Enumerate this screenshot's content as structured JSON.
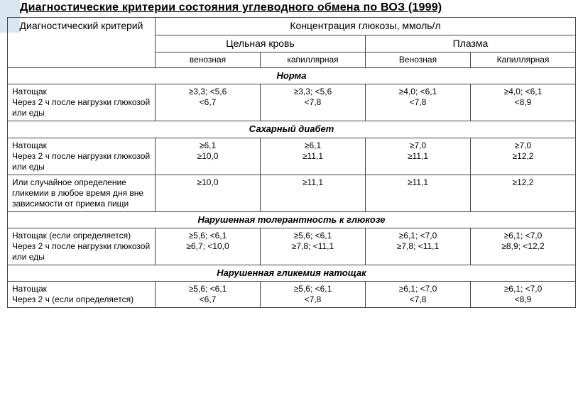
{
  "title": "Диагностические критерии состояния углеводного обмена по ВОЗ (1999)",
  "table": {
    "colgroup": [
      "crit-col",
      "val-col",
      "val-col",
      "val-col",
      "val-col"
    ],
    "header": {
      "criterion": "Диагностический критерий",
      "concentration": "Концентрация глюкозы, ммоль/л",
      "whole_blood": "Цельная кровь",
      "plasma": "Плазма",
      "venous1": "венозная",
      "capillary1": "капиллярная",
      "venous2": "Венозная",
      "capillary2": "Капиллярная"
    },
    "sections": [
      {
        "name": "Норма",
        "rows": [
          {
            "crit": "Натощак\nЧерез 2 ч после нагрузки глюкозой или еды",
            "v": [
              "≥3,3; <5,6\n<6,7",
              "≥3,3; <5,6\n<7,8",
              "≥4,0; <6,1\n<7,8",
              "≥4,0; <6,1\n<8,9"
            ]
          }
        ]
      },
      {
        "name": "Сахарный диабет",
        "rows": [
          {
            "crit": "Натощак\nЧерез 2 ч после нагрузки глюкозой или еды",
            "v": [
              "≥6,1\n≥10,0",
              "≥6,1\n≥11,1",
              "≥7,0\n≥11,1",
              "≥7,0\n≥12,2"
            ]
          },
          {
            "crit": "Или случайное определение гликемии в любое время дня вне зависимости от приема пищи",
            "v": [
              "≥10,0",
              "≥11,1",
              "≥11,1",
              "≥12,2"
            ]
          }
        ]
      },
      {
        "name": "Нарушенная толерантность к глюкозе",
        "rows": [
          {
            "crit": "Натощак (если определяется)\nЧерез 2 ч после нагрузки глюкозой или еды",
            "v": [
              "≥5,6; <6,1\n≥6,7; <10,0",
              "≥5,6; <6,1\n≥7,8; <11,1",
              "≥6,1; <7,0\n≥7,8; <11,1",
              "≥6,1; <7,0\n≥8,9; <12,2"
            ]
          }
        ]
      },
      {
        "name": "Нарушенная гликемия натощак",
        "rows": [
          {
            "crit": "Натощак\nЧерез 2 ч (если определяется)",
            "v": [
              "≥5,6; <6,1\n<6,7",
              "≥5,6; <6,1\n<7,8",
              "≥6,1; <7,0\n<7,8",
              "≥6,1; <7,0\n<8,9"
            ]
          }
        ]
      }
    ]
  },
  "colors": {
    "deco_bg": "#d9e6f2",
    "border": "#444444",
    "text": "#000000",
    "page_bg": "#ffffff"
  },
  "font": {
    "family": "Arial",
    "title_size_pt": 12,
    "body_size_pt": 9
  }
}
